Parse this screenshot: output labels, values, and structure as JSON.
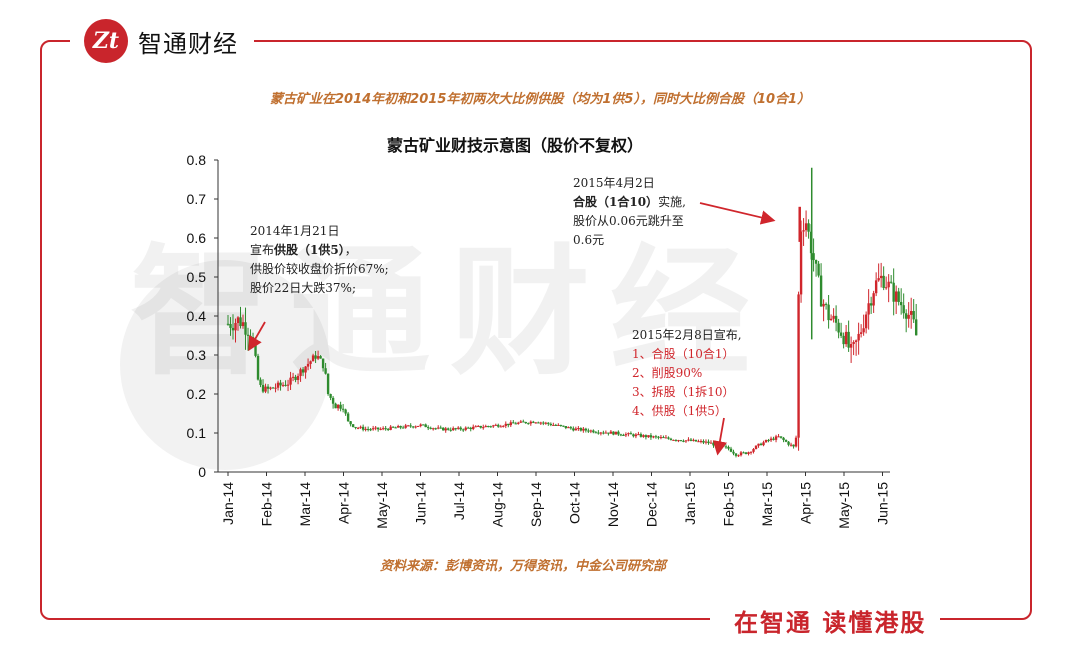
{
  "brand": {
    "logo_text": "Zt",
    "name": "智通财经"
  },
  "slogan": "在智通  读懂港股",
  "watermark": "智通财经",
  "subtitle": "蒙古矿业在2014年初和2015年初两次大比例供股（均为1供5），同时大比例合股（10合1）",
  "source": "资料来源：彭博资讯，万得资讯，中金公司研究部",
  "annotations": {
    "a1": {
      "l1": "2014年1月21日",
      "l2_pre": "宣布",
      "l2_bold": "供股（1供5）",
      "l2_post": "，",
      "l3": "供股价较收盘价折价67%;",
      "l4": "股价22日大跌37%;"
    },
    "a2": {
      "l1": "2015年4月2日",
      "l2_bold": "合股（1合10）",
      "l2_post": "实施,",
      "l3": "股价从0.06元跳升至",
      "l4": "0.6元"
    },
    "a3": {
      "l1": "2015年2月8日宣布,",
      "l2": "1、合股（10合1）",
      "l3": "2、削股90%",
      "l4": "3、拆股（1拆10）",
      "l5": "4、供股（1供5）"
    }
  },
  "colors": {
    "accent": "#c9252c",
    "up": "#d0262c",
    "down": "#2e8b2e",
    "note": "#c07030"
  },
  "chart_data": {
    "type": "candlestick",
    "title": "蒙古矿业财技示意图（股价不复权）",
    "xlabel": "",
    "ylabel": "",
    "ylim": [
      0,
      0.8
    ],
    "yticks": [
      "0",
      "0.1",
      "0.2",
      "0.3",
      "0.4",
      "0.5",
      "0.6",
      "0.7",
      "0.8"
    ],
    "xticks": [
      "Jan-14",
      "Feb-14",
      "Mar-14",
      "Apr-14",
      "May-14",
      "Jun-14",
      "Jul-14",
      "Aug-14",
      "Sep-14",
      "Oct-14",
      "Nov-14",
      "Dec-14",
      "Jan-15",
      "Feb-15",
      "Mar-15",
      "Apr-15",
      "May-15",
      "Jun-15"
    ],
    "grid": false,
    "approx_price_path": [
      [
        0.0,
        0.38
      ],
      [
        0.3,
        0.39
      ],
      [
        0.6,
        0.36
      ],
      [
        0.7,
        0.3
      ],
      [
        0.8,
        0.22
      ],
      [
        1.0,
        0.21
      ],
      [
        1.3,
        0.22
      ],
      [
        1.6,
        0.23
      ],
      [
        1.9,
        0.26
      ],
      [
        2.1,
        0.28
      ],
      [
        2.3,
        0.3
      ],
      [
        2.5,
        0.27
      ],
      [
        2.6,
        0.2
      ],
      [
        2.8,
        0.17
      ],
      [
        3.0,
        0.17
      ],
      [
        3.1,
        0.13
      ],
      [
        3.3,
        0.115
      ],
      [
        3.6,
        0.11
      ],
      [
        4.0,
        0.11
      ],
      [
        4.5,
        0.115
      ],
      [
        5.0,
        0.12
      ],
      [
        5.5,
        0.11
      ],
      [
        6.0,
        0.11
      ],
      [
        6.5,
        0.115
      ],
      [
        7.0,
        0.12
      ],
      [
        7.5,
        0.125
      ],
      [
        8.0,
        0.13
      ],
      [
        8.5,
        0.12
      ],
      [
        9.0,
        0.11
      ],
      [
        9.5,
        0.105
      ],
      [
        10.0,
        0.1
      ],
      [
        10.5,
        0.095
      ],
      [
        11.0,
        0.09
      ],
      [
        11.5,
        0.085
      ],
      [
        12.0,
        0.08
      ],
      [
        12.5,
        0.075
      ],
      [
        12.8,
        0.065
      ],
      [
        13.0,
        0.06
      ],
      [
        13.2,
        0.045
      ],
      [
        13.5,
        0.05
      ],
      [
        13.8,
        0.07
      ],
      [
        14.0,
        0.08
      ],
      [
        14.3,
        0.09
      ],
      [
        14.6,
        0.07
      ],
      [
        14.75,
        0.06
      ],
      [
        14.85,
        0.62
      ],
      [
        15.0,
        0.65
      ],
      [
        15.2,
        0.55
      ],
      [
        15.4,
        0.45
      ],
      [
        15.6,
        0.4
      ],
      [
        15.8,
        0.38
      ],
      [
        16.0,
        0.35
      ],
      [
        16.2,
        0.3
      ],
      [
        16.4,
        0.35
      ],
      [
        16.6,
        0.42
      ],
      [
        16.8,
        0.48
      ],
      [
        17.0,
        0.5
      ],
      [
        17.2,
        0.47
      ],
      [
        17.4,
        0.44
      ],
      [
        17.6,
        0.42
      ],
      [
        17.8,
        0.38
      ],
      [
        17.9,
        0.34
      ]
    ]
  }
}
